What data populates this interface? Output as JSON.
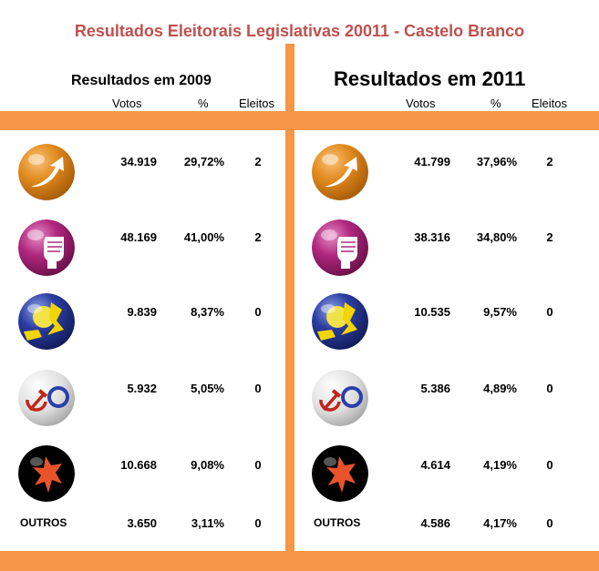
{
  "title": "Resultados Eleitorais Legislativas 20011 - Castelo Branco",
  "panels": [
    {
      "heading": "Resultados em 2009",
      "columns": [
        "Votos",
        "%",
        "Eleitos"
      ],
      "rows": [
        {
          "party_icon": "psd-arrow-icon",
          "votos": "34.919",
          "pct": "29,72%",
          "eleitos": "2"
        },
        {
          "party_icon": "ps-fist-icon",
          "votos": "48.169",
          "pct": "41,00%",
          "eleitos": "2"
        },
        {
          "party_icon": "cds-ball-icon",
          "votos": "9.839",
          "pct": "8,37%",
          "eleitos": "0"
        },
        {
          "party_icon": "cdu-hammer-sickle-icon",
          "votos": "5.932",
          "pct": "5,05%",
          "eleitos": "0"
        },
        {
          "party_icon": "be-star-figure-icon",
          "votos": "10.668",
          "pct": "9,08%",
          "eleitos": "0"
        },
        {
          "label": "OUTROS",
          "votos": "3.650",
          "pct": "3,11%",
          "eleitos": "0"
        }
      ]
    },
    {
      "heading": "Resultados em 2011",
      "columns": [
        "Votos",
        "%",
        "Eleitos"
      ],
      "rows": [
        {
          "party_icon": "psd-arrow-icon",
          "votos": "41.799",
          "pct": "37,96%",
          "eleitos": "2"
        },
        {
          "party_icon": "ps-fist-icon",
          "votos": "38.316",
          "pct": "34,80%",
          "eleitos": "2"
        },
        {
          "party_icon": "cds-ball-icon",
          "votos": "10.535",
          "pct": "9,57%",
          "eleitos": "0"
        },
        {
          "party_icon": "cdu-hammer-sickle-icon",
          "votos": "5.386",
          "pct": "4,89%",
          "eleitos": "0"
        },
        {
          "party_icon": "be-star-figure-icon",
          "votos": "4.614",
          "pct": "4,19%",
          "eleitos": "0"
        },
        {
          "label": "OUTROS",
          "votos": "4.586",
          "pct": "4,17%",
          "eleitos": "0"
        }
      ]
    }
  ],
  "colors": {
    "title": "#c0504d",
    "bars": "#f79646",
    "psd": "#e38b1e",
    "ps": "#b0287e",
    "cds": "#2a3c9e",
    "cdu": "#e6e6e6",
    "be": "#000000"
  },
  "chart_data": {
    "type": "table",
    "title": "Resultados Eleitorais Legislativas 20011 - Castelo Branco",
    "columns": [
      "Votos",
      "%",
      "Eleitos"
    ],
    "rows": [
      "psd-arrow-icon",
      "ps-fist-icon",
      "cds-ball-icon",
      "cdu-hammer-sickle-icon",
      "be-star-figure-icon",
      "OUTROS"
    ],
    "tables": [
      {
        "heading": "Resultados em 2009",
        "votos": [
          34919,
          48169,
          9839,
          5932,
          10668,
          3650
        ],
        "pct": [
          29.72,
          41.0,
          8.37,
          5.05,
          9.08,
          3.11
        ],
        "eleitos": [
          2,
          2,
          0,
          0,
          0,
          0
        ]
      },
      {
        "heading": "Resultados em 2011",
        "votos": [
          41799,
          38316,
          10535,
          5386,
          4614,
          4586
        ],
        "pct": [
          37.96,
          34.8,
          9.57,
          4.89,
          4.19,
          4.17
        ],
        "eleitos": [
          2,
          2,
          0,
          0,
          0,
          0
        ]
      }
    ]
  }
}
